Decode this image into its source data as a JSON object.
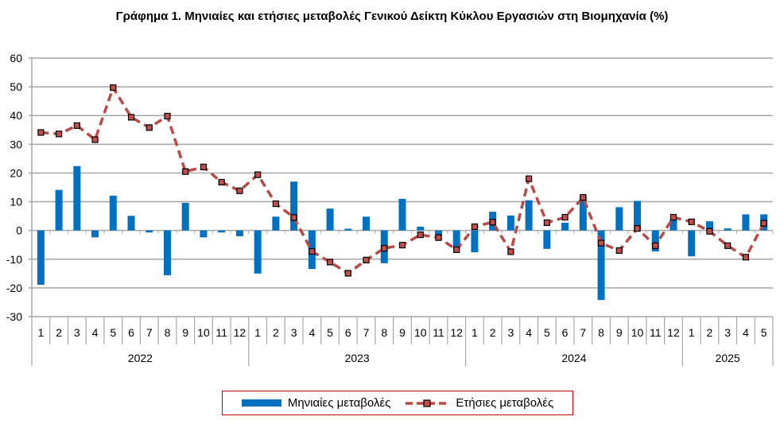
{
  "chart_data": {
    "type": "bar+line",
    "title": "Γράφημα 1.  Μηνιαίες και ετήσιες μεταβολές  Γενικού Δείκτη Κύκλου Εργασιών στη Βιομηχανία  (%)",
    "xlabel": "",
    "ylabel": "",
    "ylim": [
      -30,
      60
    ],
    "yticks": [
      -30,
      -20,
      -10,
      0,
      10,
      20,
      30,
      40,
      50,
      60
    ],
    "grid": true,
    "legend_position": "bottom",
    "years": [
      {
        "label": "2022",
        "months": 12
      },
      {
        "label": "2023",
        "months": 12
      },
      {
        "label": "2024",
        "months": 12
      },
      {
        "label": "2025",
        "months": 5
      }
    ],
    "categories": [
      "1",
      "2",
      "3",
      "4",
      "5",
      "6",
      "7",
      "8",
      "9",
      "10",
      "11",
      "12",
      "1",
      "2",
      "3",
      "4",
      "5",
      "6",
      "7",
      "8",
      "9",
      "10",
      "11",
      "12",
      "1",
      "2",
      "3",
      "4",
      "5",
      "6",
      "7",
      "8",
      "9",
      "10",
      "11",
      "12",
      "1",
      "2",
      "3",
      "4",
      "5"
    ],
    "series": [
      {
        "name": "Μηνιαίες μεταβολές",
        "type": "bar",
        "color": "#0070C0",
        "values": [
          -18.9,
          14.1,
          22.4,
          -2.4,
          12.1,
          5.1,
          -0.7,
          -15.6,
          9.6,
          -2.4,
          -0.7,
          -2.0,
          -15.0,
          4.8,
          17.0,
          -13.4,
          7.6,
          0.6,
          4.8,
          -11.4,
          11.0,
          1.3,
          -2.1,
          -6.5,
          -7.6,
          6.5,
          5.2,
          10.5,
          -6.4,
          2.7,
          12.0,
          -24.2,
          8.1,
          10.3,
          -7.3,
          4.0,
          -9.0,
          3.2,
          0.7,
          5.6,
          5.6
        ]
      },
      {
        "name": "Ετήσιες μεταβολές",
        "type": "line",
        "color": "#B84A47",
        "values": [
          34.1,
          33.6,
          36.5,
          31.6,
          49.7,
          39.4,
          35.8,
          39.8,
          20.5,
          22.1,
          16.8,
          13.8,
          19.4,
          9.3,
          4.5,
          -7.3,
          -11.0,
          -14.9,
          -10.3,
          -6.2,
          -5.1,
          -1.5,
          -2.5,
          -6.7,
          1.3,
          2.9,
          -7.4,
          18.0,
          2.7,
          4.6,
          11.5,
          -4.4,
          -7.0,
          0.7,
          -5.3,
          4.6,
          3.0,
          -0.3,
          -5.3,
          -9.3,
          2.5
        ]
      }
    ]
  }
}
